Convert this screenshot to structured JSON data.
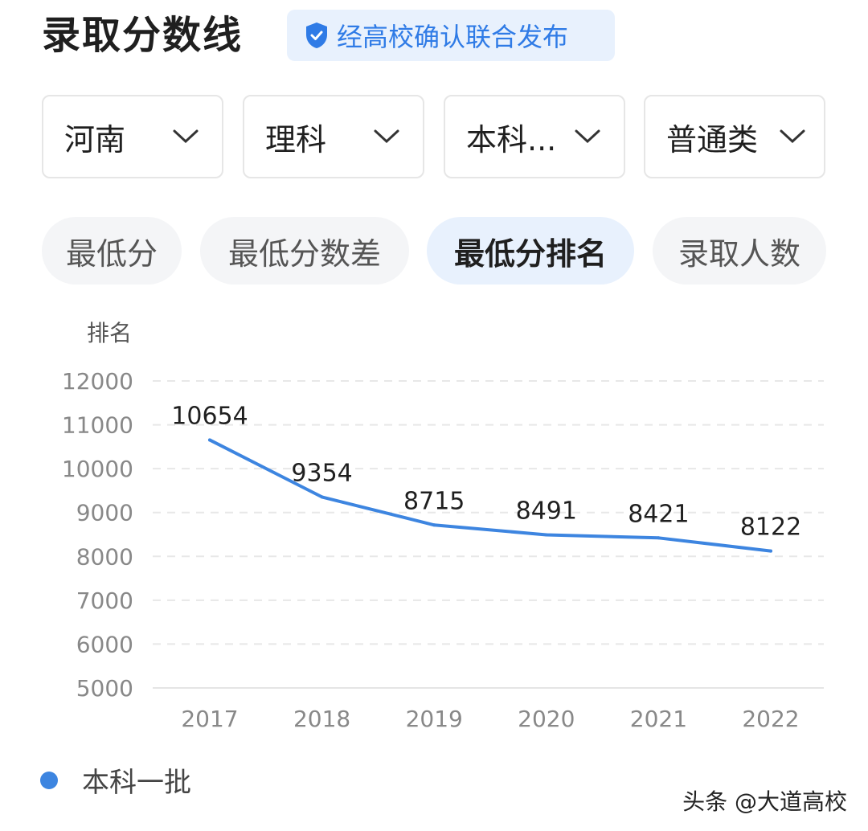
{
  "header": {
    "title": "录取分数线",
    "badge": "经高校确认联合发布",
    "badge_icon": "shield-check-icon"
  },
  "filters": [
    {
      "label": "河南"
    },
    {
      "label": "理科"
    },
    {
      "label": "本科..."
    },
    {
      "label": "普通类"
    }
  ],
  "tabs": [
    {
      "label": "最低分",
      "active": false
    },
    {
      "label": "最低分数差",
      "active": false
    },
    {
      "label": "最低分排名",
      "active": true
    },
    {
      "label": "录取人数",
      "active": false
    }
  ],
  "colors": {
    "accent": "#2f7be6",
    "line": "#3d85e0"
  },
  "chart_data": {
    "type": "line",
    "ylabel": "排名",
    "xlabel": "",
    "ylim": [
      5000,
      12000
    ],
    "yticks": [
      "12000",
      "11000",
      "10000",
      "9000",
      "8000",
      "7000",
      "6000",
      "5000"
    ],
    "categories": [
      "2017",
      "2018",
      "2019",
      "2020",
      "2021",
      "2022"
    ],
    "series": [
      {
        "name": "本科一批",
        "values": [
          10654,
          9354,
          8715,
          8491,
          8421,
          8122
        ]
      }
    ],
    "grid": true,
    "legend": "bottom-left"
  },
  "watermark": "头条 @大道高校"
}
